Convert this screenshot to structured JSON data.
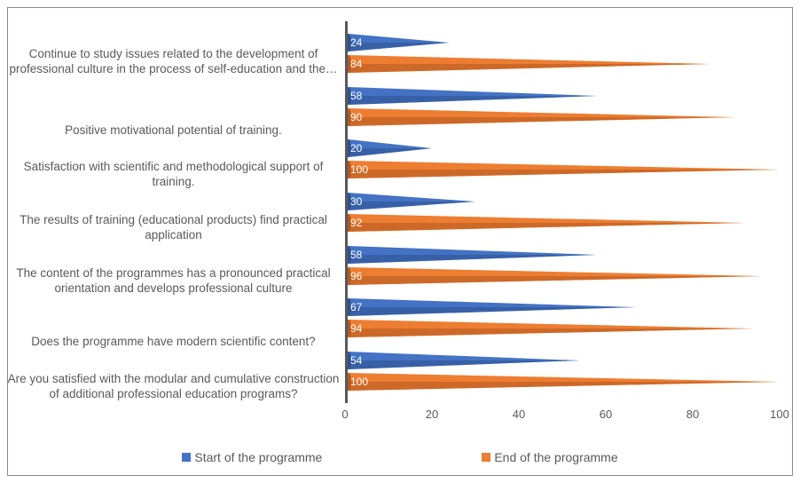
{
  "chart": {
    "type": "bar-cone-horizontal",
    "xlim": [
      0,
      100
    ],
    "xtick_step": 20,
    "xticks": [
      0,
      20,
      40,
      60,
      80,
      100
    ],
    "background_color": "#ffffff",
    "axis_color": "#595959",
    "label_fontsize": 13.5,
    "value_fontsize": 12,
    "value_color": "#ffffff",
    "series": [
      {
        "name": "Start of the programme",
        "color": "#4472c4",
        "dark": "#2f528f"
      },
      {
        "name": "End of the programme",
        "color": "#ed7d31",
        "dark": "#b35a20"
      }
    ],
    "categories": [
      {
        "label": "Continue to study issues related to the development of professional culture in the process of self-education and the…",
        "start": 24,
        "end": 84,
        "label_offset": 2
      },
      {
        "label": "Positive motivational potential of training.",
        "start": 58,
        "end": 90,
        "label_offset": 28
      },
      {
        "label": "Satisfaction with scientific and methodological support of training.",
        "start": 20,
        "end": 100,
        "label_offset": 10
      },
      {
        "label": "The results of training (educational products) find practical application",
        "start": 30,
        "end": 92,
        "label_offset": 10
      },
      {
        "label": "The content of the programmes has a pronounced practical orientation and develops professional culture",
        "start": 58,
        "end": 96,
        "label_offset": 10
      },
      {
        "label": "Does the programme have modern scientific content?",
        "start": 67,
        "end": 94,
        "label_offset": 28
      },
      {
        "label": "Are you satisfied with the modular and cumulative construction of additional professional education programs?",
        "start": 54,
        "end": 100,
        "label_offset": 10
      }
    ]
  }
}
